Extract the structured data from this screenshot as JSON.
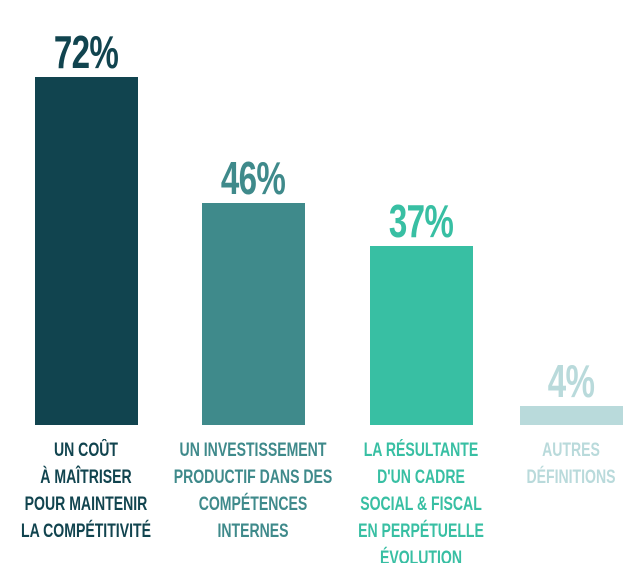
{
  "chart_data": {
    "type": "bar",
    "categories": [
      "UN COÛT\nÀ MAÎTRISER\nPOUR MAINTENIR\nLA COMPÉTITIVITÉ",
      "UN INVESTISSEMENT\nPRODUCTIF DANS DES\nCOMPÉTENCES\nINTERNES",
      "LA RÉSULTANTE\nD'UN CADRE\nSOCIAL & FISCAL\nEN PERPÉTUELLE\nÉVOLUTION",
      "AUTRES\nDÉFINITIONS"
    ],
    "values": [
      72,
      46,
      37,
      4
    ],
    "value_labels": [
      "72%",
      "46%",
      "37%",
      "4%"
    ],
    "colors": [
      "#11444f",
      "#3f8a8b",
      "#38bfa3",
      "#b9dadb"
    ]
  }
}
